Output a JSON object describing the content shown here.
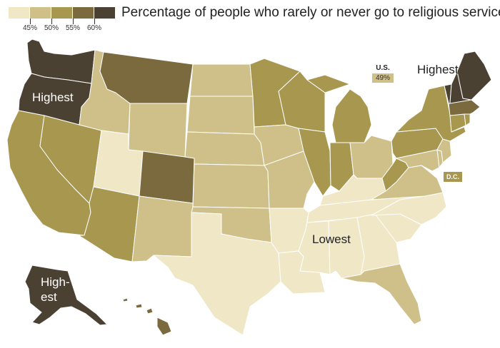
{
  "title": "Percentage of people who rarely or never go to religious services",
  "legend": {
    "colors": [
      "#f0e7c7",
      "#cfc08a",
      "#a7974f",
      "#7a6a3e",
      "#4b4133"
    ],
    "ticks": [
      "45%",
      "50%",
      "55%",
      "60%"
    ]
  },
  "us_average": {
    "label": "U.S.",
    "value": "49%"
  },
  "dc_label": "D.C.",
  "labels": {
    "northwest": "Highest",
    "northeast": "Highest",
    "south": "Lowest",
    "alaska_1": "High-",
    "alaska_2": "est"
  },
  "states": [
    {
      "id": "WA",
      "bin": 4
    },
    {
      "id": "OR",
      "bin": 4
    },
    {
      "id": "CA",
      "bin": 2
    },
    {
      "id": "NV",
      "bin": 2
    },
    {
      "id": "ID",
      "bin": 1
    },
    {
      "id": "MT",
      "bin": 3
    },
    {
      "id": "WY",
      "bin": 1
    },
    {
      "id": "UT",
      "bin": 0
    },
    {
      "id": "CO",
      "bin": 3
    },
    {
      "id": "AZ",
      "bin": 2
    },
    {
      "id": "NM",
      "bin": 1
    },
    {
      "id": "ND",
      "bin": 1
    },
    {
      "id": "SD",
      "bin": 1
    },
    {
      "id": "NE",
      "bin": 1
    },
    {
      "id": "KS",
      "bin": 1
    },
    {
      "id": "OK",
      "bin": 1
    },
    {
      "id": "TX",
      "bin": 0
    },
    {
      "id": "MN",
      "bin": 2
    },
    {
      "id": "IA",
      "bin": 1
    },
    {
      "id": "MO",
      "bin": 1
    },
    {
      "id": "AR",
      "bin": 0
    },
    {
      "id": "LA",
      "bin": 0
    },
    {
      "id": "WI",
      "bin": 2
    },
    {
      "id": "IL",
      "bin": 2
    },
    {
      "id": "MI",
      "bin": 2
    },
    {
      "id": "IN",
      "bin": 2
    },
    {
      "id": "OH",
      "bin": 1
    },
    {
      "id": "KY",
      "bin": 0
    },
    {
      "id": "TN",
      "bin": 0
    },
    {
      "id": "MS",
      "bin": 0
    },
    {
      "id": "AL",
      "bin": 0
    },
    {
      "id": "GA",
      "bin": 0
    },
    {
      "id": "FL",
      "bin": 1
    },
    {
      "id": "SC",
      "bin": 0
    },
    {
      "id": "NC",
      "bin": 0
    },
    {
      "id": "VA",
      "bin": 1
    },
    {
      "id": "WV",
      "bin": 2
    },
    {
      "id": "MD",
      "bin": 1
    },
    {
      "id": "DE",
      "bin": 1
    },
    {
      "id": "NJ",
      "bin": 1
    },
    {
      "id": "PA",
      "bin": 2
    },
    {
      "id": "NY",
      "bin": 2
    },
    {
      "id": "CT",
      "bin": 2
    },
    {
      "id": "RI",
      "bin": 2
    },
    {
      "id": "MA",
      "bin": 3
    },
    {
      "id": "VT",
      "bin": 4
    },
    {
      "id": "NH",
      "bin": 4
    },
    {
      "id": "ME",
      "bin": 4
    },
    {
      "id": "AK",
      "bin": 4
    },
    {
      "id": "HI",
      "bin": 3
    }
  ]
}
